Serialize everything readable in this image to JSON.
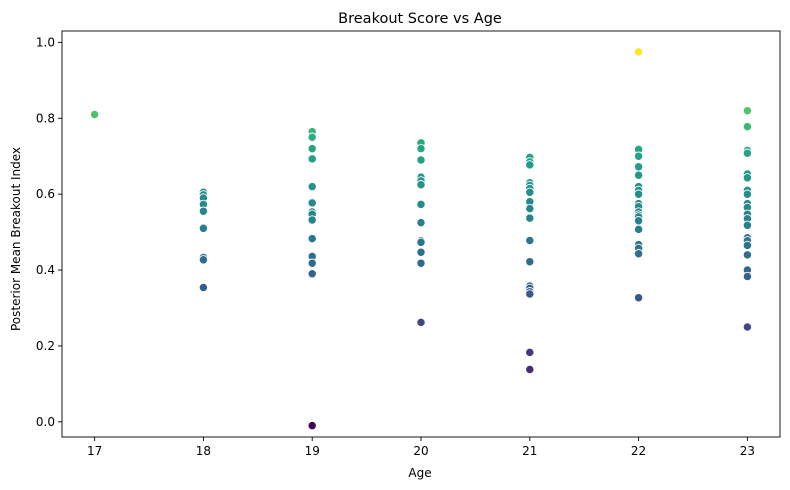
{
  "chart_data": {
    "type": "scatter",
    "title": "Breakout Score vs Age",
    "xlabel": "Age",
    "ylabel": "Posterior Mean Breakout Index",
    "xlim": [
      16.7,
      23.3
    ],
    "ylim": [
      -0.04,
      1.03
    ],
    "xticks": [
      17,
      18,
      19,
      20,
      21,
      22,
      23
    ],
    "xtick_labels": [
      "17",
      "18",
      "19",
      "20",
      "21",
      "22",
      "23"
    ],
    "yticks": [
      0.0,
      0.2,
      0.4,
      0.6,
      0.8,
      1.0
    ],
    "ytick_labels": [
      "0.0",
      "0.2",
      "0.4",
      "0.6",
      "0.8",
      "1.0"
    ],
    "grid": false,
    "legend": "none",
    "colormap": "viridis",
    "color_encodes": "y value",
    "points": [
      {
        "x": 17,
        "y": 0.81
      },
      {
        "x": 18,
        "y": 0.605
      },
      {
        "x": 18,
        "y": 0.598
      },
      {
        "x": 18,
        "y": 0.59
      },
      {
        "x": 18,
        "y": 0.573
      },
      {
        "x": 18,
        "y": 0.555
      },
      {
        "x": 18,
        "y": 0.51
      },
      {
        "x": 18,
        "y": 0.433
      },
      {
        "x": 18,
        "y": 0.427
      },
      {
        "x": 18,
        "y": 0.354
      },
      {
        "x": 19,
        "y": 0.765
      },
      {
        "x": 19,
        "y": 0.75
      },
      {
        "x": 19,
        "y": 0.72
      },
      {
        "x": 19,
        "y": 0.693
      },
      {
        "x": 19,
        "y": 0.62
      },
      {
        "x": 19,
        "y": 0.577
      },
      {
        "x": 19,
        "y": 0.553
      },
      {
        "x": 19,
        "y": 0.547
      },
      {
        "x": 19,
        "y": 0.532
      },
      {
        "x": 19,
        "y": 0.483
      },
      {
        "x": 19,
        "y": 0.436
      },
      {
        "x": 19,
        "y": 0.418
      },
      {
        "x": 19,
        "y": 0.39
      },
      {
        "x": 19,
        "y": -0.01
      },
      {
        "x": 20,
        "y": 0.735
      },
      {
        "x": 20,
        "y": 0.72
      },
      {
        "x": 20,
        "y": 0.69
      },
      {
        "x": 20,
        "y": 0.645
      },
      {
        "x": 20,
        "y": 0.635
      },
      {
        "x": 20,
        "y": 0.625
      },
      {
        "x": 20,
        "y": 0.573
      },
      {
        "x": 20,
        "y": 0.525
      },
      {
        "x": 20,
        "y": 0.477
      },
      {
        "x": 20,
        "y": 0.473
      },
      {
        "x": 20,
        "y": 0.447
      },
      {
        "x": 20,
        "y": 0.418
      },
      {
        "x": 20,
        "y": 0.262
      },
      {
        "x": 21,
        "y": 0.697
      },
      {
        "x": 21,
        "y": 0.685
      },
      {
        "x": 21,
        "y": 0.677
      },
      {
        "x": 21,
        "y": 0.63
      },
      {
        "x": 21,
        "y": 0.623
      },
      {
        "x": 21,
        "y": 0.615
      },
      {
        "x": 21,
        "y": 0.605
      },
      {
        "x": 21,
        "y": 0.58
      },
      {
        "x": 21,
        "y": 0.562
      },
      {
        "x": 21,
        "y": 0.537
      },
      {
        "x": 21,
        "y": 0.478
      },
      {
        "x": 21,
        "y": 0.422
      },
      {
        "x": 21,
        "y": 0.358
      },
      {
        "x": 21,
        "y": 0.352
      },
      {
        "x": 21,
        "y": 0.343
      },
      {
        "x": 21,
        "y": 0.337
      },
      {
        "x": 21,
        "y": 0.183
      },
      {
        "x": 21,
        "y": 0.138
      },
      {
        "x": 22,
        "y": 0.975
      },
      {
        "x": 22,
        "y": 0.718
      },
      {
        "x": 22,
        "y": 0.7
      },
      {
        "x": 22,
        "y": 0.672
      },
      {
        "x": 22,
        "y": 0.65
      },
      {
        "x": 22,
        "y": 0.62
      },
      {
        "x": 22,
        "y": 0.61
      },
      {
        "x": 22,
        "y": 0.6
      },
      {
        "x": 22,
        "y": 0.575
      },
      {
        "x": 22,
        "y": 0.567
      },
      {
        "x": 22,
        "y": 0.553
      },
      {
        "x": 22,
        "y": 0.545
      },
      {
        "x": 22,
        "y": 0.54
      },
      {
        "x": 22,
        "y": 0.53
      },
      {
        "x": 22,
        "y": 0.507
      },
      {
        "x": 22,
        "y": 0.467
      },
      {
        "x": 22,
        "y": 0.457
      },
      {
        "x": 22,
        "y": 0.443
      },
      {
        "x": 22,
        "y": 0.327
      },
      {
        "x": 23,
        "y": 0.82
      },
      {
        "x": 23,
        "y": 0.778
      },
      {
        "x": 23,
        "y": 0.715
      },
      {
        "x": 23,
        "y": 0.708
      },
      {
        "x": 23,
        "y": 0.653
      },
      {
        "x": 23,
        "y": 0.643
      },
      {
        "x": 23,
        "y": 0.61
      },
      {
        "x": 23,
        "y": 0.6
      },
      {
        "x": 23,
        "y": 0.575
      },
      {
        "x": 23,
        "y": 0.565
      },
      {
        "x": 23,
        "y": 0.547
      },
      {
        "x": 23,
        "y": 0.535
      },
      {
        "x": 23,
        "y": 0.518
      },
      {
        "x": 23,
        "y": 0.485
      },
      {
        "x": 23,
        "y": 0.477
      },
      {
        "x": 23,
        "y": 0.465
      },
      {
        "x": 23,
        "y": 0.44
      },
      {
        "x": 23,
        "y": 0.4
      },
      {
        "x": 23,
        "y": 0.383
      },
      {
        "x": 23,
        "y": 0.25
      }
    ]
  }
}
